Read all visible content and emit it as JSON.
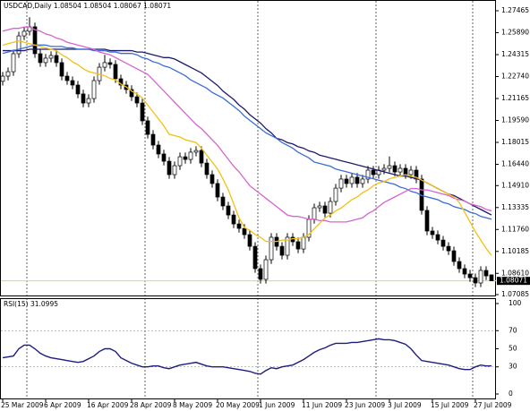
{
  "chart_data": [
    {
      "type": "candlestick",
      "title": "USDCAD,Daily",
      "categories": [
        "25 Mar 2009",
        null,
        null,
        null,
        null,
        null,
        null,
        null,
        "6 Apr 2009",
        null,
        null,
        null,
        null,
        null,
        null,
        null,
        "16 Apr 2009",
        null,
        null,
        null,
        null,
        null,
        null,
        null,
        "28 Apr 2009",
        null,
        null,
        null,
        null,
        null,
        null,
        null,
        "8 May 2009",
        null,
        null,
        null,
        null,
        null,
        null,
        null,
        "20 May 2009",
        null,
        null,
        null,
        null,
        null,
        null,
        null,
        "1 Jun 2009",
        null,
        null,
        null,
        null,
        null,
        null,
        null,
        "11 Jun 2009",
        null,
        null,
        null,
        null,
        null,
        null,
        null,
        "23 Jun 2009",
        null,
        null,
        null,
        null,
        null,
        null,
        null,
        "3 Jul 2009",
        null,
        null,
        null,
        null,
        null,
        null,
        null,
        "15 Jul 2009",
        null,
        null,
        null,
        null,
        null,
        null,
        null,
        "27 Jul 2009",
        null,
        null,
        null
      ],
      "open": [
        1.224,
        1.2277,
        1.2309,
        1.2438,
        1.2566,
        1.2599,
        1.2631,
        1.2438,
        1.2374,
        1.2406,
        1.2425,
        1.2374,
        1.2277,
        1.2245,
        1.2213,
        1.2149,
        1.2084,
        1.2116,
        1.2245,
        1.2341,
        1.2374,
        1.2361,
        1.2258,
        1.2213,
        1.2181,
        1.2129,
        1.2084,
        1.1956,
        1.1859,
        1.1782,
        1.1718,
        1.1666,
        1.157,
        1.1634,
        1.1698,
        1.1679,
        1.1731,
        1.1743,
        1.1653,
        1.157,
        1.1506,
        1.1409,
        1.1345,
        1.128,
        1.1216,
        1.1184,
        1.1139,
        1.1055,
        1.0895,
        1.0818,
        1.0959,
        1.112,
        1.1055,
        1.0991,
        1.112,
        1.1088,
        1.1036,
        1.112,
        1.1248,
        1.1332,
        1.1345,
        1.1293,
        1.1377,
        1.1473,
        1.1538,
        1.1506,
        1.1551,
        1.1506,
        1.1538,
        1.1602,
        1.157,
        1.1602,
        1.1615,
        1.1634,
        1.1589,
        1.1615,
        1.157,
        1.1602,
        1.1538,
        1.1313,
        1.1165,
        1.1139,
        1.11,
        1.1055,
        1.1023,
        1.0946,
        1.0895,
        1.0856,
        1.083,
        1.0792,
        1.0882,
        1.08504
      ],
      "high": [
        1.2307,
        1.2339,
        1.2468,
        1.2596,
        1.2629,
        1.27,
        1.2661,
        1.2468,
        1.2436,
        1.2455,
        1.2455,
        1.2404,
        1.2307,
        1.2275,
        1.2243,
        1.2179,
        1.2146,
        1.2275,
        1.2371,
        1.243,
        1.2404,
        1.2391,
        1.2288,
        1.2243,
        1.2211,
        1.2159,
        1.2114,
        1.1986,
        1.1889,
        1.1812,
        1.1748,
        1.1696,
        1.1664,
        1.1728,
        1.1728,
        1.1761,
        1.1773,
        1.1773,
        1.1683,
        1.16,
        1.1536,
        1.1439,
        1.1375,
        1.131,
        1.1246,
        1.1214,
        1.1169,
        1.1085,
        1.0925,
        1.0989,
        1.115,
        1.115,
        1.1085,
        1.115,
        1.115,
        1.1118,
        1.115,
        1.1278,
        1.1362,
        1.1375,
        1.1375,
        1.1407,
        1.1503,
        1.1568,
        1.1568,
        1.1581,
        1.1581,
        1.1568,
        1.1632,
        1.1632,
        1.1632,
        1.1645,
        1.17,
        1.1664,
        1.1645,
        1.1645,
        1.1632,
        1.1632,
        1.1568,
        1.1343,
        1.1195,
        1.1169,
        1.113,
        1.1085,
        1.1053,
        1.0976,
        1.0925,
        1.0886,
        1.086,
        1.0912,
        1.0912,
        1.08504
      ],
      "low": [
        1.221,
        1.2247,
        1.2279,
        1.2408,
        1.2536,
        1.2569,
        1.2408,
        1.2344,
        1.2344,
        1.2376,
        1.2344,
        1.2247,
        1.2215,
        1.2183,
        1.2119,
        1.2054,
        1.2054,
        1.2086,
        1.2215,
        1.2311,
        1.2331,
        1.2228,
        1.2183,
        1.2151,
        1.2099,
        1.2054,
        1.1926,
        1.1829,
        1.1752,
        1.1688,
        1.1636,
        1.154,
        1.154,
        1.1604,
        1.1649,
        1.1649,
        1.1701,
        1.1623,
        1.154,
        1.1476,
        1.1379,
        1.1315,
        1.125,
        1.1186,
        1.1154,
        1.1109,
        1.1025,
        1.0865,
        1.0788,
        1.0788,
        1.0929,
        1.1025,
        1.0961,
        1.0961,
        1.1058,
        1.1006,
        1.1006,
        1.109,
        1.1218,
        1.1302,
        1.1263,
        1.1263,
        1.1347,
        1.1443,
        1.1476,
        1.1476,
        1.1476,
        1.1476,
        1.1508,
        1.154,
        1.154,
        1.1572,
        1.1585,
        1.1559,
        1.1559,
        1.154,
        1.154,
        1.1508,
        1.1283,
        1.1135,
        1.1109,
        1.107,
        1.1025,
        1.0993,
        1.0916,
        1.0865,
        1.0826,
        1.08,
        1.0762,
        1.0762,
        1.0813,
        1.08067
      ],
      "close": [
        1.2277,
        1.2309,
        1.2438,
        1.2566,
        1.2599,
        1.2631,
        1.2438,
        1.2374,
        1.2406,
        1.2425,
        1.2374,
        1.2277,
        1.2245,
        1.2213,
        1.2149,
        1.2084,
        1.2116,
        1.2245,
        1.2341,
        1.2374,
        1.2361,
        1.2258,
        1.2213,
        1.2181,
        1.2129,
        1.2084,
        1.1956,
        1.1859,
        1.1782,
        1.1718,
        1.1666,
        1.157,
        1.1634,
        1.1698,
        1.1679,
        1.1731,
        1.1743,
        1.1653,
        1.157,
        1.1506,
        1.1409,
        1.1345,
        1.128,
        1.1216,
        1.1184,
        1.1139,
        1.1055,
        1.0895,
        1.0818,
        1.0959,
        1.112,
        1.1055,
        1.0991,
        1.112,
        1.1088,
        1.1036,
        1.112,
        1.1248,
        1.1332,
        1.1345,
        1.1293,
        1.1377,
        1.1473,
        1.1538,
        1.1506,
        1.1551,
        1.1506,
        1.1538,
        1.1602,
        1.157,
        1.1602,
        1.1615,
        1.1634,
        1.1589,
        1.1615,
        1.157,
        1.1602,
        1.1538,
        1.1313,
        1.1165,
        1.1139,
        1.11,
        1.1055,
        1.1023,
        1.0946,
        1.0895,
        1.0856,
        1.083,
        1.0792,
        1.0882,
        1.0843,
        1.08071
      ],
      "overlays": [
        {
          "color": "#1d1b6e",
          "values": [
            1.246,
            1.246,
            1.246,
            1.246,
            1.246,
            1.247,
            1.247,
            1.247,
            1.247,
            1.247,
            1.247,
            1.247,
            1.247,
            1.247,
            1.247,
            1.247,
            1.247,
            1.247,
            1.247,
            1.247,
            1.246,
            1.246,
            1.246,
            1.246,
            1.246,
            1.245,
            1.245,
            1.244,
            1.243,
            1.242,
            1.241,
            1.241,
            1.24,
            1.238,
            1.236,
            1.234,
            1.232,
            1.23,
            1.227,
            1.224,
            1.221,
            1.217,
            1.214,
            1.211,
            1.207,
            1.204,
            1.2,
            1.197,
            1.194,
            1.19,
            1.187,
            1.183,
            1.182,
            1.18,
            1.179,
            1.177,
            1.176,
            1.174,
            1.173,
            1.171,
            1.17,
            1.169,
            1.168,
            1.167,
            1.166,
            1.165,
            1.164,
            1.163,
            1.162,
            1.161,
            1.16,
            1.159,
            1.158,
            1.157,
            1.156,
            1.156,
            1.155,
            1.154,
            1.153,
            1.151,
            1.149,
            1.147,
            1.145,
            1.143,
            1.142,
            1.14,
            1.138,
            1.136,
            1.134,
            1.132,
            1.13,
            1.128
          ]
        },
        {
          "color": "#3a6ed6",
          "values": [
            1.244,
            1.245,
            1.246,
            1.247,
            1.248,
            1.249,
            1.25,
            1.25,
            1.25,
            1.249,
            1.249,
            1.249,
            1.248,
            1.248,
            1.247,
            1.247,
            1.247,
            1.246,
            1.246,
            1.246,
            1.245,
            1.245,
            1.244,
            1.244,
            1.244,
            1.243,
            1.241,
            1.24,
            1.238,
            1.237,
            1.235,
            1.234,
            1.232,
            1.23,
            1.228,
            1.225,
            1.223,
            1.221,
            1.219,
            1.216,
            1.214,
            1.212,
            1.209,
            1.206,
            1.203,
            1.199,
            1.196,
            1.193,
            1.19,
            1.187,
            1.185,
            1.183,
            1.18,
            1.178,
            1.176,
            1.173,
            1.171,
            1.169,
            1.166,
            1.165,
            1.164,
            1.163,
            1.161,
            1.16,
            1.159,
            1.158,
            1.157,
            1.156,
            1.155,
            1.154,
            1.153,
            1.152,
            1.151,
            1.15,
            1.148,
            1.147,
            1.145,
            1.144,
            1.142,
            1.141,
            1.14,
            1.139,
            1.137,
            1.136,
            1.134,
            1.133,
            1.132,
            1.13,
            1.129,
            1.127,
            1.126,
            1.125
          ]
        },
        {
          "color": "#d565cf",
          "values": [
            1.26,
            1.261,
            1.262,
            1.262,
            1.263,
            1.263,
            1.261,
            1.26,
            1.258,
            1.257,
            1.255,
            1.254,
            1.252,
            1.251,
            1.25,
            1.249,
            1.248,
            1.247,
            1.245,
            1.244,
            1.243,
            1.241,
            1.239,
            1.237,
            1.235,
            1.233,
            1.231,
            1.229,
            1.225,
            1.221,
            1.217,
            1.213,
            1.209,
            1.205,
            1.201,
            1.197,
            1.193,
            1.19,
            1.186,
            1.182,
            1.178,
            1.173,
            1.168,
            1.163,
            1.159,
            1.154,
            1.149,
            1.146,
            1.143,
            1.14,
            1.137,
            1.134,
            1.131,
            1.128,
            1.127,
            1.127,
            1.126,
            1.125,
            1.125,
            1.124,
            1.124,
            1.123,
            1.123,
            1.123,
            1.123,
            1.124,
            1.125,
            1.126,
            1.129,
            1.131,
            1.134,
            1.137,
            1.139,
            1.141,
            1.143,
            1.145,
            1.147,
            1.147,
            1.146,
            1.146,
            1.145,
            1.144,
            1.143,
            1.142,
            1.14,
            1.139,
            1.138,
            1.136,
            1.135,
            1.134,
            1.132,
            1.131
          ]
        },
        {
          "color": "#f2c014",
          "values": [
            1.25,
            1.251,
            1.252,
            1.253,
            1.252,
            1.251,
            1.25,
            1.249,
            1.248,
            1.247,
            1.246,
            1.243,
            1.241,
            1.238,
            1.236,
            1.233,
            1.231,
            1.23,
            1.229,
            1.228,
            1.226,
            1.225,
            1.222,
            1.22,
            1.217,
            1.215,
            1.212,
            1.207,
            1.202,
            1.197,
            1.192,
            1.186,
            1.185,
            1.184,
            1.182,
            1.181,
            1.18,
            1.176,
            1.171,
            1.166,
            1.161,
            1.154,
            1.146,
            1.136,
            1.126,
            1.119,
            1.117,
            1.114,
            1.112,
            1.109,
            1.109,
            1.109,
            1.11,
            1.11,
            1.111,
            1.111,
            1.112,
            1.114,
            1.118,
            1.122,
            1.126,
            1.128,
            1.131,
            1.133,
            1.136,
            1.139,
            1.141,
            1.144,
            1.146,
            1.149,
            1.151,
            1.152,
            1.154,
            1.155,
            1.156,
            1.157,
            1.156,
            1.155,
            1.153,
            1.151,
            1.149,
            1.147,
            1.145,
            1.143,
            1.141,
            1.137,
            1.13,
            1.123,
            1.116,
            1.11,
            1.104,
            1.099
          ]
        }
      ],
      "up_color": "#ffffff",
      "down_color": "#000000",
      "price_line_color": "#f3d34a",
      "ylim": [
        1.07021,
        1.28236
      ],
      "yticks": [
        1.27465,
        {
          "value": 1.2589,
          "label": "1.25890"
        },
        1.24315,
        {
          "value": 1.2274,
          "label": "1.22740"
        },
        1.21165,
        {
          "value": 1.1959,
          "label": "1.19590"
        },
        1.18015,
        {
          "value": 1.1644,
          "label": "1.16440"
        },
        {
          "value": 1.1491,
          "label": "1.14910"
        },
        1.13335,
        {
          "value": 1.1176,
          "label": "1.11760"
        },
        1.10185,
        {
          "value": 1.0861,
          "label": "1.08610"
        },
        1.07085
      ]
    },
    {
      "type": "line",
      "title": "RSI(15)",
      "color": "#1d1d80",
      "values": [
        40,
        41,
        42,
        50,
        54,
        54,
        50,
        45,
        42,
        40,
        39,
        38,
        37,
        36,
        35,
        36,
        39,
        42,
        47,
        50,
        50,
        47,
        40,
        37,
        34,
        32,
        30,
        30,
        31,
        31,
        29,
        28,
        30,
        32,
        33,
        34,
        35,
        33,
        31,
        30,
        30,
        30,
        29,
        28,
        27,
        26,
        25,
        23,
        22,
        26,
        29,
        28,
        30,
        31,
        32,
        35,
        38,
        42,
        46,
        49,
        51,
        54,
        56,
        56,
        56,
        57,
        57,
        58,
        59,
        60,
        61,
        60,
        60,
        59,
        57,
        55,
        50,
        43,
        37,
        36,
        35,
        34,
        33,
        32,
        30,
        28,
        27,
        27,
        30,
        32,
        31,
        31.0995
      ],
      "ylim": [
        -5.94,
        105.94
      ],
      "yticks": [
        100,
        70,
        50,
        30,
        0
      ],
      "levels": [
        70,
        30
      ]
    }
  ]
}
